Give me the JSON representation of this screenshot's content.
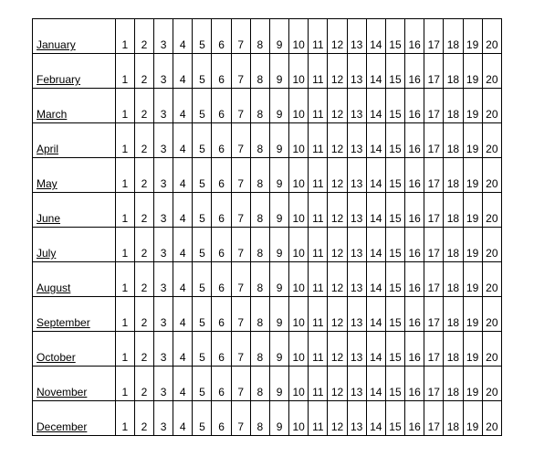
{
  "calendar": {
    "months": [
      "January",
      "February",
      "March",
      "April",
      "May",
      "June",
      "July",
      "August",
      "September",
      "October",
      "November",
      "December"
    ],
    "days": [
      1,
      2,
      3,
      4,
      5,
      6,
      7,
      8,
      9,
      10,
      11,
      12,
      13,
      14,
      15,
      16,
      17,
      18,
      19,
      20
    ]
  }
}
